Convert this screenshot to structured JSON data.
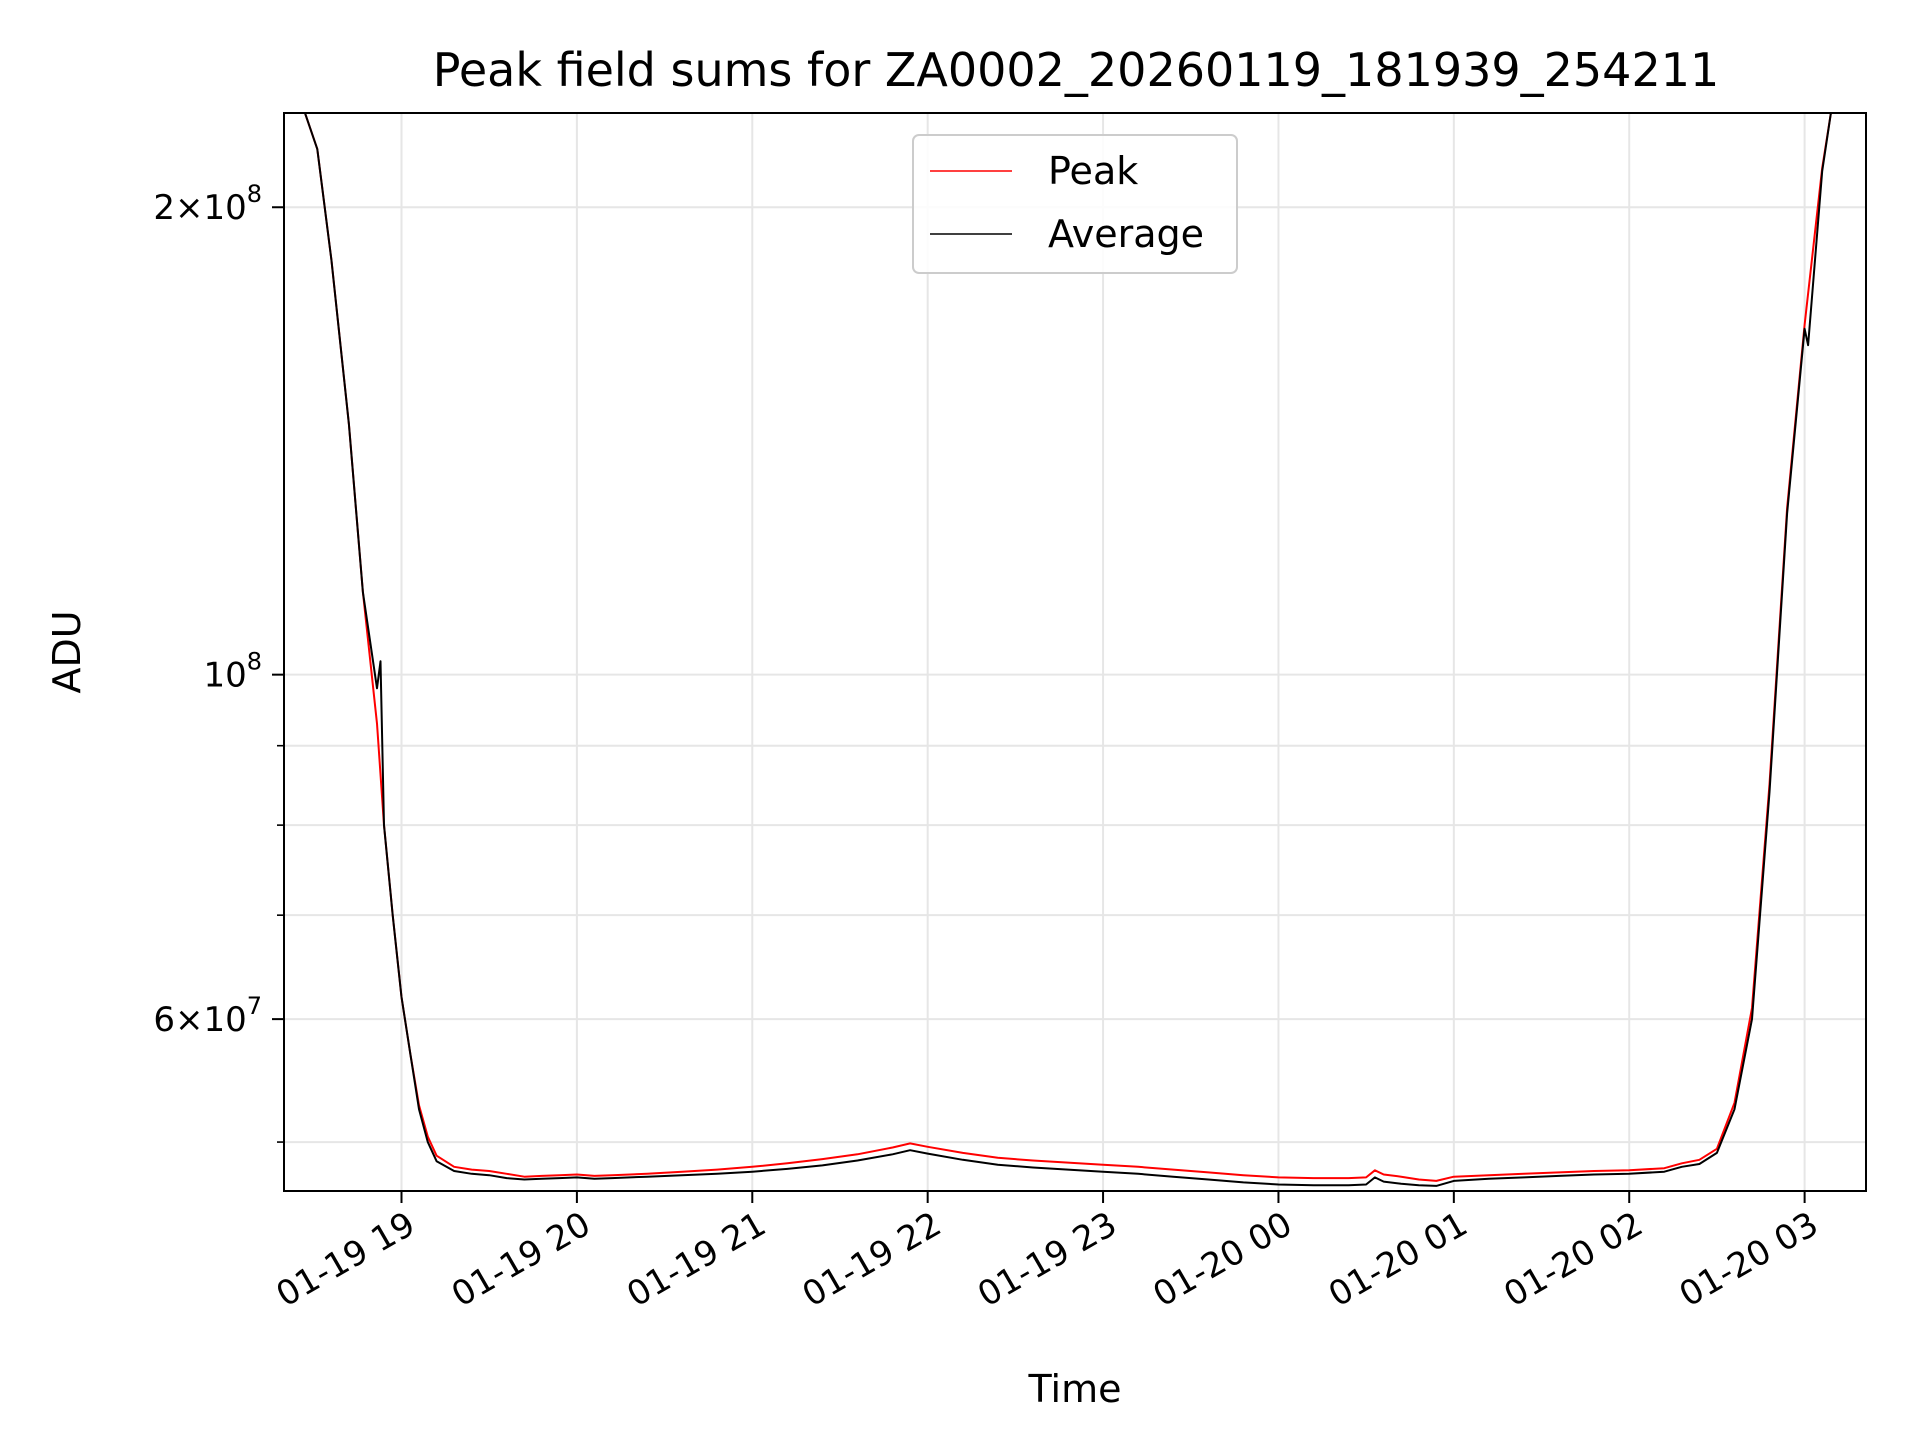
{
  "chart_data": {
    "type": "line",
    "title": "Peak field sums for ZA0002_20260119_181939_254211",
    "xlabel": "Time",
    "ylabel": "ADU",
    "yscale": "log",
    "ylim": [
      46500000,
      230000000
    ],
    "xlim_hours": [
      18.33,
      27.35
    ],
    "grid": true,
    "legend_position": "upper-center",
    "x_ticks": [
      {
        "hour": 19,
        "label": "01-19 19"
      },
      {
        "hour": 20,
        "label": "01-19 20"
      },
      {
        "hour": 21,
        "label": "01-19 21"
      },
      {
        "hour": 22,
        "label": "01-19 22"
      },
      {
        "hour": 23,
        "label": "01-19 23"
      },
      {
        "hour": 24,
        "label": "01-20 00"
      },
      {
        "hour": 25,
        "label": "01-20 01"
      },
      {
        "hour": 26,
        "label": "01-20 02"
      },
      {
        "hour": 27,
        "label": "01-20 03"
      }
    ],
    "y_ticks_major": [
      {
        "value": 200000000,
        "base": "2×10",
        "exp": "8"
      },
      {
        "value": 100000000,
        "base": "10",
        "exp": "8"
      },
      {
        "value": 60000000,
        "base": "6×10",
        "exp": "7"
      }
    ],
    "y_ticks_minor": [
      50000000,
      70000000,
      80000000,
      90000000
    ],
    "series": [
      {
        "name": "Peak",
        "color": "#ff0000",
        "x_hours": [
          18.33,
          18.45,
          18.52,
          18.6,
          18.7,
          18.78,
          18.86,
          18.9,
          18.95,
          19.0,
          19.05,
          19.1,
          19.15,
          19.2,
          19.3,
          19.4,
          19.5,
          19.6,
          19.7,
          19.8,
          19.9,
          20.0,
          20.1,
          20.2,
          20.4,
          20.6,
          20.8,
          21.0,
          21.2,
          21.4,
          21.6,
          21.8,
          21.9,
          22.0,
          22.2,
          22.4,
          22.6,
          22.8,
          23.0,
          23.2,
          23.4,
          23.6,
          23.8,
          24.0,
          24.2,
          24.4,
          24.5,
          24.55,
          24.6,
          24.7,
          24.8,
          24.9,
          25.0,
          25.2,
          25.4,
          25.6,
          25.8,
          26.0,
          26.2,
          26.3,
          26.4,
          26.5,
          26.6,
          26.7,
          26.8,
          26.9,
          27.0,
          27.1,
          27.15,
          27.35
        ],
        "values": [
          230000000,
          230000000,
          218000000,
          185000000,
          145000000,
          113000000,
          93000000,
          80000000,
          70000000,
          62000000,
          57000000,
          52800000,
          50400000,
          49000000,
          48200000,
          48000000,
          47900000,
          47700000,
          47500000,
          47550000,
          47600000,
          47650000,
          47550000,
          47600000,
          47700000,
          47850000,
          48000000,
          48200000,
          48450000,
          48750000,
          49100000,
          49600000,
          49900000,
          49650000,
          49200000,
          48850000,
          48650000,
          48500000,
          48350000,
          48200000,
          48000000,
          47800000,
          47600000,
          47450000,
          47400000,
          47400000,
          47450000,
          47950000,
          47650000,
          47500000,
          47300000,
          47200000,
          47500000,
          47600000,
          47700000,
          47800000,
          47900000,
          47950000,
          48100000,
          48450000,
          48700000,
          49500000,
          53000000,
          61000000,
          85000000,
          128000000,
          168000000,
          212000000,
          230000000,
          230000000
        ]
      },
      {
        "name": "Average",
        "color": "#000000",
        "x_hours": [
          18.33,
          18.45,
          18.52,
          18.6,
          18.7,
          18.78,
          18.86,
          18.88,
          18.9,
          18.95,
          19.0,
          19.05,
          19.1,
          19.15,
          19.2,
          19.3,
          19.4,
          19.5,
          19.6,
          19.7,
          19.8,
          19.9,
          20.0,
          20.1,
          20.2,
          20.4,
          20.6,
          20.8,
          21.0,
          21.2,
          21.4,
          21.6,
          21.8,
          21.9,
          22.0,
          22.2,
          22.4,
          22.6,
          22.8,
          23.0,
          23.2,
          23.4,
          23.6,
          23.8,
          24.0,
          24.2,
          24.4,
          24.5,
          24.55,
          24.6,
          24.7,
          24.8,
          24.9,
          25.0,
          25.2,
          25.4,
          25.6,
          25.8,
          26.0,
          26.2,
          26.3,
          26.4,
          26.5,
          26.6,
          26.7,
          26.8,
          26.9,
          27.0,
          27.02,
          27.1,
          27.15,
          27.35
        ],
        "values": [
          230000000,
          230000000,
          218000000,
          185000000,
          145000000,
          113000000,
          98000000,
          102000000,
          80000000,
          70000000,
          62000000,
          57000000,
          52500000,
          50000000,
          48600000,
          47900000,
          47700000,
          47600000,
          47400000,
          47300000,
          47350000,
          47400000,
          47450000,
          47350000,
          47400000,
          47500000,
          47600000,
          47700000,
          47850000,
          48050000,
          48300000,
          48650000,
          49100000,
          49400000,
          49150000,
          48700000,
          48350000,
          48150000,
          48000000,
          47850000,
          47700000,
          47500000,
          47300000,
          47100000,
          46950000,
          46900000,
          46900000,
          46950000,
          47450000,
          47150000,
          47000000,
          46900000,
          46850000,
          47200000,
          47350000,
          47450000,
          47550000,
          47650000,
          47700000,
          47850000,
          48200000,
          48400000,
          49200000,
          52500000,
          60000000,
          84000000,
          127000000,
          167000000,
          163000000,
          211000000,
          230000000,
          230000000
        ]
      }
    ]
  }
}
